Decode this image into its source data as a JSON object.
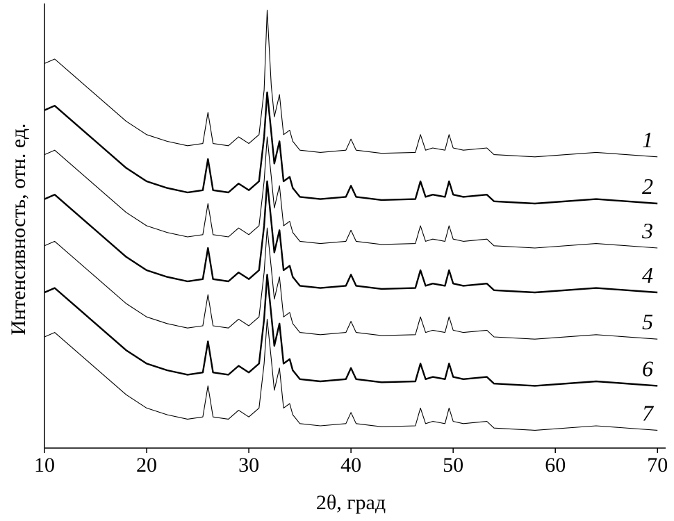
{
  "chart_data": {
    "type": "line",
    "xlabel": "2θ, град",
    "ylabel": "Интенсивность, отн. ед.",
    "x": [
      10,
      11,
      13,
      15,
      18,
      20,
      22,
      24,
      25.5,
      26,
      26.5,
      28,
      29,
      30,
      31,
      31.5,
      31.8,
      32.2,
      32.5,
      33,
      33.4,
      34,
      34.3,
      35,
      37,
      39.5,
      40,
      40.5,
      43,
      46.3,
      46.8,
      47.3,
      48,
      49.2,
      49.6,
      50,
      51,
      53.3,
      54,
      58,
      64,
      70
    ],
    "xlim": [
      10,
      70.8
    ],
    "xticks": [
      10,
      20,
      30,
      40,
      50,
      60,
      70
    ],
    "ylim": [
      0,
      100
    ],
    "series": [
      {
        "name": "1",
        "color": "#000000",
        "width": 1.1,
        "values": [
          86.5,
          87.5,
          83.5,
          79.5,
          73.5,
          70.5,
          69,
          68,
          68.5,
          75.5,
          68.5,
          68,
          70,
          68.5,
          70.5,
          80.5,
          98.5,
          81.5,
          74.5,
          79.5,
          70.5,
          71.5,
          69,
          67,
          66.5,
          67,
          69.5,
          67,
          66.3,
          66.5,
          70.5,
          67,
          67.5,
          67,
          70.5,
          67.5,
          67,
          67.5,
          66,
          65.5,
          66.5,
          65.5
        ]
      },
      {
        "name": "2",
        "color": "#000000",
        "width": 2.4,
        "values": [
          76,
          77,
          73,
          69,
          63,
          60,
          58.5,
          57.5,
          58,
          65,
          58,
          57.5,
          59.5,
          58,
          60,
          70,
          80,
          71,
          64,
          69,
          60,
          61,
          58.5,
          56.5,
          56,
          56.5,
          59,
          56.5,
          55.8,
          56,
          60,
          56.5,
          57,
          56.5,
          60,
          57,
          56.5,
          57,
          55.5,
          55,
          56,
          55
        ]
      },
      {
        "name": "3",
        "color": "#000000",
        "width": 1.1,
        "values": [
          66,
          67,
          63,
          59,
          53,
          50,
          48.5,
          47.5,
          48,
          55,
          48,
          47.5,
          49.5,
          48,
          50,
          60,
          70,
          61,
          54,
          59,
          50,
          51,
          48.5,
          46.5,
          46,
          46.5,
          49,
          46.5,
          45.8,
          46,
          50,
          46.5,
          47,
          46.5,
          50,
          47,
          46.5,
          47,
          45.5,
          45,
          46,
          45
        ]
      },
      {
        "name": "4",
        "color": "#000000",
        "width": 2.4,
        "values": [
          56,
          57,
          53,
          49,
          43,
          40,
          38.5,
          37.5,
          38,
          45,
          38,
          37.5,
          39.5,
          38,
          40,
          50,
          60,
          51,
          44,
          49,
          40,
          41,
          38.5,
          36.5,
          36,
          36.5,
          39,
          36.5,
          35.8,
          36,
          40,
          36.5,
          37,
          36.5,
          40,
          37,
          36.5,
          37,
          35.5,
          35,
          36,
          35
        ]
      },
      {
        "name": "5",
        "color": "#000000",
        "width": 1.1,
        "values": [
          45.5,
          46.5,
          42.5,
          38.5,
          32.5,
          29.5,
          28,
          27,
          27.5,
          34.5,
          27.5,
          27,
          29,
          27.5,
          29.5,
          39.5,
          49.5,
          40.5,
          33.5,
          38.5,
          29.5,
          30.5,
          28,
          26,
          25.5,
          26,
          28.5,
          26,
          25.3,
          25.5,
          29.5,
          26,
          26.5,
          26,
          29.5,
          26.5,
          26,
          26.5,
          25,
          24.5,
          25.5,
          24.5
        ]
      },
      {
        "name": "6",
        "color": "#000000",
        "width": 2.4,
        "values": [
          35,
          36,
          32,
          28,
          22,
          19,
          17.5,
          16.5,
          17,
          24,
          17,
          16.5,
          18.5,
          17,
          19,
          29,
          39,
          30,
          23,
          28,
          19,
          20,
          17.5,
          15.5,
          15,
          15.5,
          18,
          15.5,
          14.8,
          15,
          19,
          15.5,
          16,
          15.5,
          19,
          16,
          15.5,
          16,
          14.5,
          14,
          15,
          14
        ]
      },
      {
        "name": "7",
        "color": "#000000",
        "width": 1.1,
        "values": [
          25,
          26,
          22,
          18,
          12,
          9,
          7.5,
          6.5,
          7,
          14,
          7,
          6.5,
          8.5,
          7,
          9,
          19,
          29,
          20,
          13,
          18,
          9,
          10,
          7.5,
          5.5,
          5,
          5.5,
          8,
          5.5,
          4.8,
          5,
          9,
          5.5,
          6,
          5.5,
          9,
          6,
          5.5,
          6,
          4.5,
          4,
          5,
          4
        ]
      }
    ]
  }
}
